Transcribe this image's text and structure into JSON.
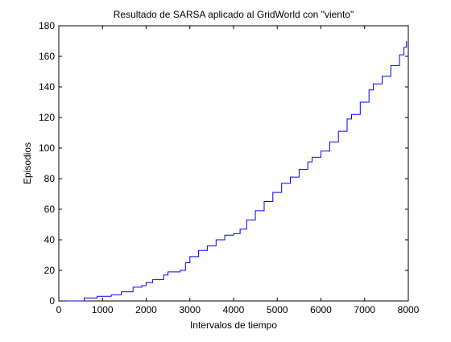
{
  "chart_data": {
    "type": "line",
    "title": "Resultado de SARSA aplicado al GridWorld con \"viento\"",
    "xlabel": "Intervalos de tiempo",
    "ylabel": "Episodios",
    "xlim": [
      0,
      8000
    ],
    "ylim": [
      0,
      180
    ],
    "xticks": [
      0,
      1000,
      2000,
      3000,
      4000,
      5000,
      6000,
      7000,
      8000
    ],
    "yticks": [
      0,
      20,
      40,
      60,
      80,
      100,
      120,
      140,
      160,
      180
    ],
    "grid": false,
    "line_color": "#0000ff",
    "series": [
      {
        "step": true,
        "x": [
          180,
          580,
          880,
          1200,
          1430,
          1700,
          1900,
          2000,
          2150,
          2400,
          2500,
          2780,
          2900,
          3000,
          3200,
          3400,
          3600,
          3800,
          4000,
          4150,
          4300,
          4500,
          4700,
          4900,
          5100,
          5300,
          5500,
          5700,
          5800,
          6000,
          6200,
          6400,
          6600,
          6700,
          6900,
          7100,
          7200,
          7400,
          7600,
          7800,
          7900,
          7960
        ],
        "y": [
          0,
          2,
          3,
          4,
          6,
          9,
          10,
          12,
          14,
          17,
          19,
          20,
          25,
          29,
          33,
          36,
          40,
          43,
          44,
          47,
          53,
          59,
          65,
          71,
          77,
          81,
          86,
          91,
          94,
          98,
          104,
          111,
          119,
          122,
          130,
          138,
          142,
          147,
          154,
          161,
          166,
          170
        ]
      }
    ]
  }
}
